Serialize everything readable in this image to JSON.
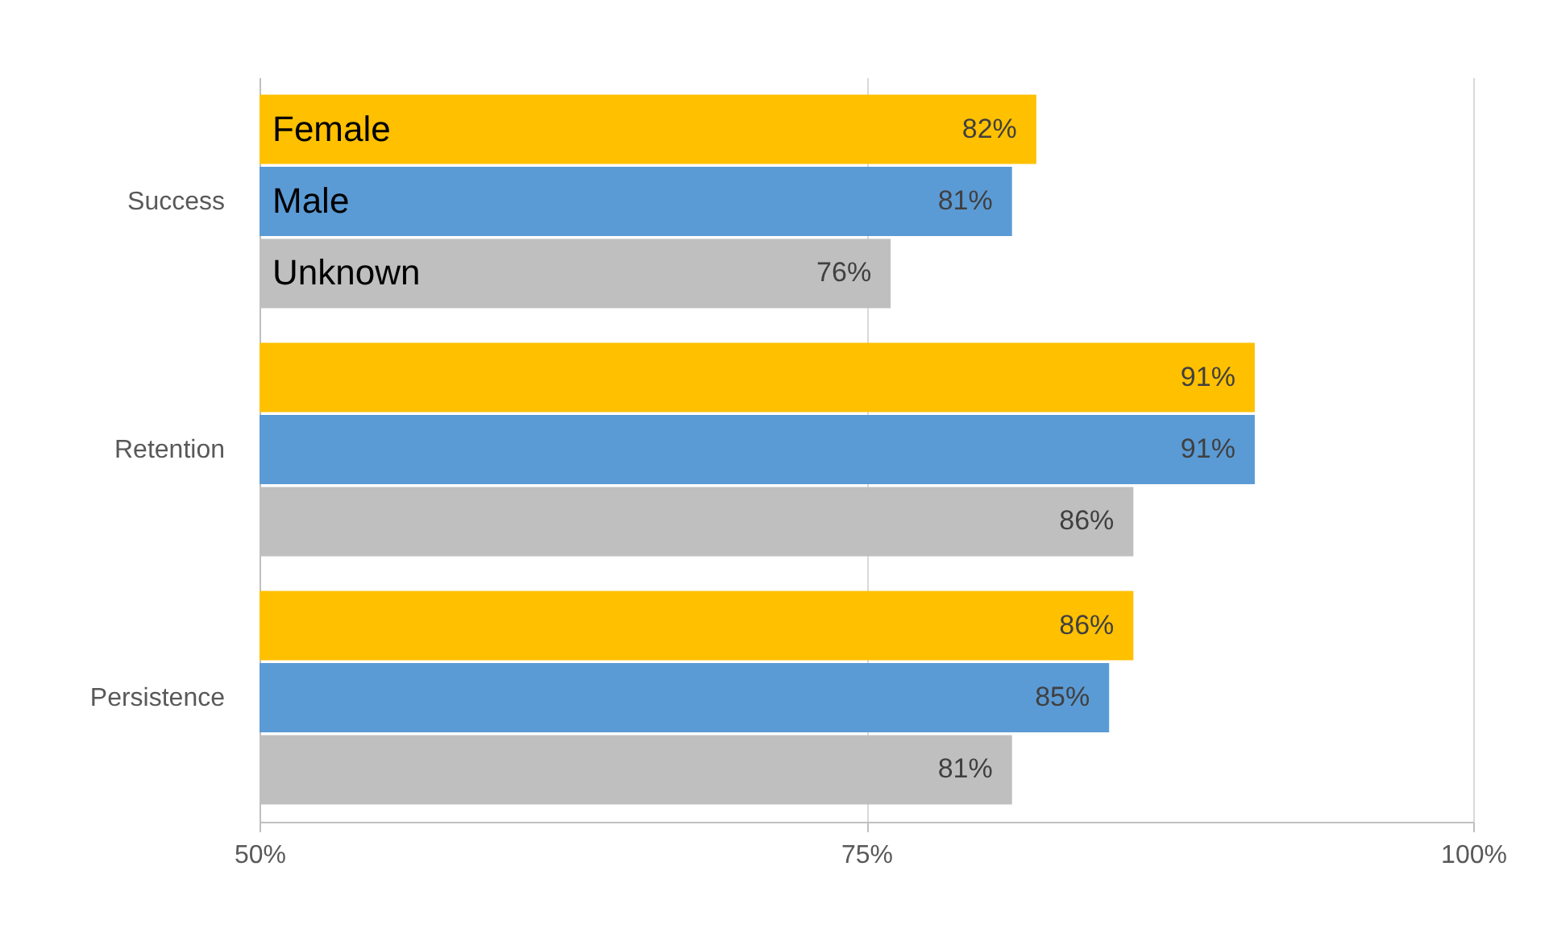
{
  "chart_data": {
    "type": "bar",
    "orientation": "horizontal",
    "categories": [
      "Success",
      "Retention",
      "Persistence"
    ],
    "series": [
      {
        "name": "Female",
        "color": "#ffc000",
        "values": [
          82,
          91,
          86
        ],
        "value_labels": [
          "82%",
          "91%",
          "86%"
        ]
      },
      {
        "name": "Male",
        "color": "#5b9bd5",
        "values": [
          81,
          91,
          85
        ],
        "value_labels": [
          "81%",
          "91%",
          "85%"
        ]
      },
      {
        "name": "Unknown",
        "color": "#bfbfbf",
        "values": [
          76,
          86,
          81
        ],
        "value_labels": [
          "76%",
          "86%",
          "81%"
        ]
      }
    ],
    "xlim": [
      50,
      100
    ],
    "xticks": [
      {
        "value": 50,
        "label": "50%"
      },
      {
        "value": 75,
        "label": "75%"
      },
      {
        "value": 100,
        "label": "100%"
      }
    ],
    "grid": "x",
    "legend": false
  }
}
